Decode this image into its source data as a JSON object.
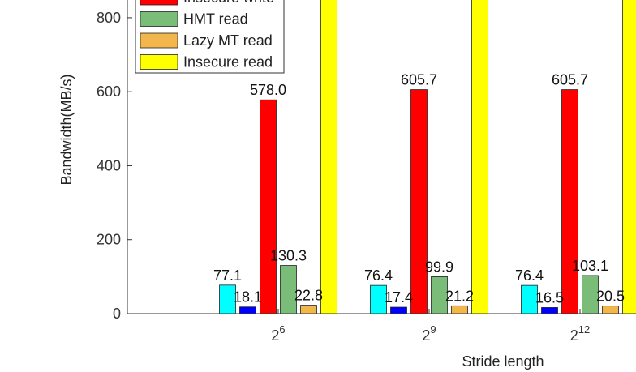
{
  "chart_data": {
    "type": "bar",
    "y_label": "Bandwidth(MB/s)",
    "x_label": "Stride length",
    "categories": [
      {
        "base": "2",
        "exponent": "6"
      },
      {
        "base": "2",
        "exponent": "9"
      },
      {
        "base": "2",
        "exponent": "12"
      }
    ],
    "ylim": [
      0,
      848
    ],
    "yticks": [
      0,
      200,
      400,
      600,
      800
    ],
    "series": [
      {
        "color": "#00ffff",
        "values": [
          77.1,
          76.4,
          76.4
        ]
      },
      {
        "color": "#0000ff",
        "values": [
          18.1,
          17.4,
          16.5
        ]
      },
      {
        "name": "Insecure write",
        "color": "#ff0000",
        "values": [
          578.0,
          605.7,
          605.7
        ],
        "value_labels": [
          "578.0",
          "605.7",
          "605.7"
        ]
      },
      {
        "name": "HMT read",
        "color": "#79bd79",
        "values": [
          130.3,
          99.9,
          103.1
        ]
      },
      {
        "name": "Lazy MT read",
        "color": "#f2b64c",
        "values": [
          22.8,
          21.2,
          20.5
        ]
      },
      {
        "name": "Insecure read",
        "color": "#ffff00",
        "values": [
          1000,
          1000,
          1000
        ],
        "labels_shown": false
      }
    ]
  }
}
